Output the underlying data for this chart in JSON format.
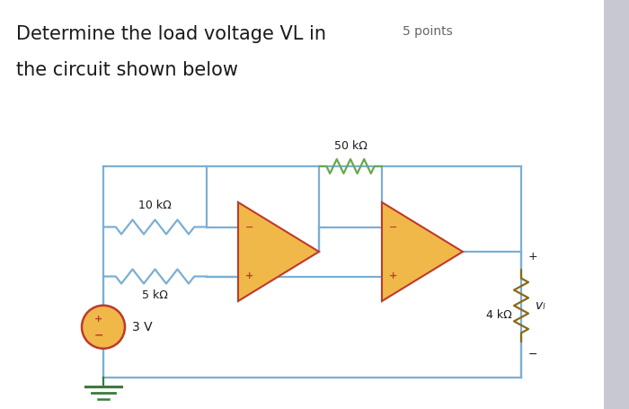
{
  "title_line1": "Determine the load voltage VL in",
  "title_points": "5 points",
  "title_line2": "the circuit shown below",
  "title_fontsize": 15,
  "points_fontsize": 10,
  "bg_color": "#ffffff",
  "wire_color": "#7bafd4",
  "resistor_color_top": "#6aa84f",
  "resistor_color_side": "#8b6914",
  "opamp_fill": "#f0b849",
  "opamp_edge": "#c0392b",
  "source_fill": "#f0b849",
  "source_edge": "#c0392b",
  "text_color": "#1a1a1a",
  "label_10k": "10 kΩ",
  "label_5k": "5 kΩ",
  "label_50k": "50 kΩ",
  "label_4k": "4 kΩ",
  "label_source": "3 V",
  "label_vl": "vₗ",
  "right_bar_color": "#c8c8d0"
}
